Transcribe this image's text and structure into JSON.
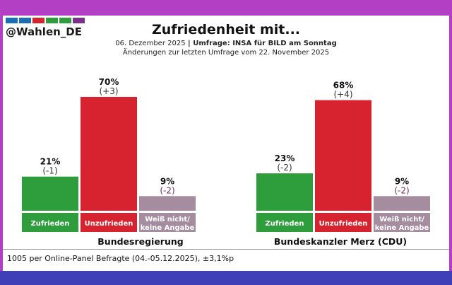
{
  "header": {
    "handle": "@Wahlen_DE",
    "logo_colors": [
      "#1a6fb5",
      "#1a6fb5",
      "#d6232f",
      "#2e9e3c",
      "#2e9e3c",
      "#7d2f8e"
    ],
    "title": "Zufriedenheit mit...",
    "date": "06. Dezember 2025",
    "separator": " | ",
    "source": "Umfrage: INSA für BILD am Sonntag",
    "changes_note": "Änderungen zur letzten Umfrage vom 22. November 2025"
  },
  "footer": {
    "note": "1005 per Online-Panel Befragte (04.-05.12.2025), ±3,1%p"
  },
  "colors": {
    "zufrieden": "#2e9e3c",
    "unzufrieden": "#d6232f",
    "weiss_nicht": "#a58d9f"
  },
  "chart_data": [
    {
      "type": "bar",
      "title": "Bundesregierung",
      "categories": [
        "Zufrieden",
        "Unzufrieden",
        "Weiß nicht/ keine Angabe"
      ],
      "values": [
        21,
        70,
        9
      ],
      "value_labels": [
        "21%",
        "70%",
        "9%"
      ],
      "changes": [
        "(-1)",
        "(+3)",
        "(-2)"
      ],
      "ylim": [
        0,
        100
      ]
    },
    {
      "type": "bar",
      "title": "Bundeskanzler Merz (CDU)",
      "categories": [
        "Zufrieden",
        "Unzufrieden",
        "Weiß nicht/ keine Angabe"
      ],
      "values": [
        23,
        68,
        9
      ],
      "value_labels": [
        "23%",
        "68%",
        "9%"
      ],
      "changes": [
        "(-2)",
        "(+4)",
        "(-2)"
      ],
      "ylim": [
        0,
        100
      ]
    }
  ]
}
